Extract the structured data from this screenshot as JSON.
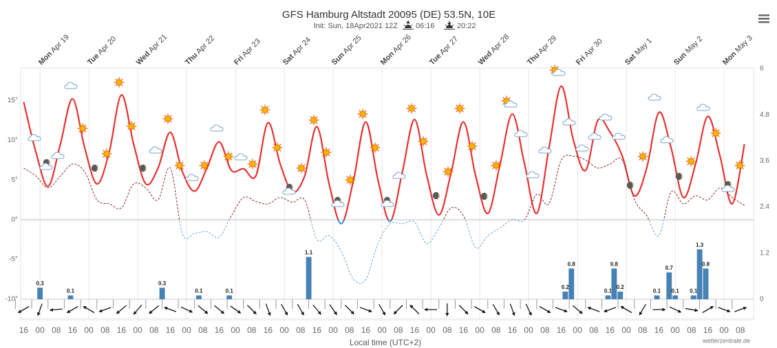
{
  "chart_data": {
    "type": "line",
    "title": "GFS Hamburg Altstadt 20095 (DE) 53.5N, 10E",
    "subtitle": "Init: Sun, 18Apr2021 12Z",
    "sunrise": "06:16",
    "sunset": "20:22",
    "x_label": "Local time (UTC+2)",
    "credit": "wetterzentrale.de",
    "xlim": [
      14.5,
      374.5
    ],
    "xticks": [
      {
        "value": 16,
        "label": "16"
      },
      {
        "value": 24,
        "label": "00"
      },
      {
        "value": 32,
        "label": "08"
      },
      {
        "value": 40,
        "label": "16"
      },
      {
        "value": 48,
        "label": "00"
      },
      {
        "value": 56,
        "label": "08"
      },
      {
        "value": 64,
        "label": "16"
      },
      {
        "value": 72,
        "label": "00"
      },
      {
        "value": 80,
        "label": "08"
      },
      {
        "value": 88,
        "label": "16"
      },
      {
        "value": 96,
        "label": "00"
      },
      {
        "value": 104,
        "label": "08"
      },
      {
        "value": 112,
        "label": "16"
      },
      {
        "value": 120,
        "label": "00"
      },
      {
        "value": 128,
        "label": "08"
      },
      {
        "value": 136,
        "label": "16"
      },
      {
        "value": 144,
        "label": "00"
      },
      {
        "value": 152,
        "label": "08"
      },
      {
        "value": 160,
        "label": "16"
      },
      {
        "value": 168,
        "label": "00"
      },
      {
        "value": 176,
        "label": "08"
      },
      {
        "value": 184,
        "label": "16"
      },
      {
        "value": 192,
        "label": "00"
      },
      {
        "value": 200,
        "label": "08"
      },
      {
        "value": 208,
        "label": "16"
      },
      {
        "value": 216,
        "label": "00"
      },
      {
        "value": 224,
        "label": "08"
      },
      {
        "value": 232,
        "label": "16"
      },
      {
        "value": 240,
        "label": "00"
      },
      {
        "value": 248,
        "label": "08"
      },
      {
        "value": 256,
        "label": "16"
      },
      {
        "value": 264,
        "label": "00"
      },
      {
        "value": 272,
        "label": "08"
      },
      {
        "value": 280,
        "label": "16"
      },
      {
        "value": 288,
        "label": "00"
      },
      {
        "value": 296,
        "label": "08"
      },
      {
        "value": 304,
        "label": "16"
      },
      {
        "value": 312,
        "label": "00"
      },
      {
        "value": 320,
        "label": "08"
      },
      {
        "value": 328,
        "label": "16"
      },
      {
        "value": 336,
        "label": "00"
      },
      {
        "value": 344,
        "label": "08"
      },
      {
        "value": 352,
        "label": "16"
      },
      {
        "value": 360,
        "label": "00"
      },
      {
        "value": 368,
        "label": "08"
      }
    ],
    "day_labels": [
      {
        "value": 24,
        "label": "Mon Apr 19"
      },
      {
        "value": 48,
        "label": "Tue Apr 20"
      },
      {
        "value": 72,
        "label": "Wed Apr 21"
      },
      {
        "value": 96,
        "label": "Thu Apr 22"
      },
      {
        "value": 120,
        "label": "Fri Apr 23"
      },
      {
        "value": 144,
        "label": "Sat Apr 24"
      },
      {
        "value": 168,
        "label": "Sun Apr 25"
      },
      {
        "value": 192,
        "label": "Mon Apr 26"
      },
      {
        "value": 216,
        "label": "Tue Apr 27"
      },
      {
        "value": 240,
        "label": "Wed Apr 28"
      },
      {
        "value": 264,
        "label": "Thu Apr 29"
      },
      {
        "value": 288,
        "label": "Fri Apr 30"
      },
      {
        "value": 312,
        "label": "Sat May 1"
      },
      {
        "value": 336,
        "label": "Sun May 2"
      },
      {
        "value": 360,
        "label": "Mon May 3"
      }
    ],
    "ylim": [
      -10,
      19
    ],
    "yticks": [
      {
        "value": -10,
        "label": "-10°"
      },
      {
        "value": -5,
        "label": "-5°"
      },
      {
        "value": 0,
        "label": "0°"
      },
      {
        "value": 5,
        "label": "5°"
      },
      {
        "value": 10,
        "label": "10°"
      },
      {
        "value": 15,
        "label": "15°"
      }
    ],
    "y2lim": [
      0,
      6
    ],
    "y2ticks": [
      0,
      1.2,
      2.4,
      3.6,
      4.8,
      6
    ],
    "zero_line": true,
    "x": [
      16,
      22,
      28,
      34,
      40,
      46,
      52,
      58,
      64,
      70,
      76,
      82,
      88,
      94,
      100,
      106,
      112,
      118,
      124,
      130,
      136,
      142,
      148,
      154,
      160,
      166,
      172,
      178,
      184,
      190,
      196,
      202,
      208,
      214,
      220,
      226,
      232,
      238,
      244,
      250,
      256,
      262,
      268,
      274,
      280,
      286,
      292,
      298,
      304,
      310,
      316,
      322,
      328,
      334,
      340,
      346,
      352,
      358,
      364,
      370
    ],
    "series": [
      {
        "color": "#e83030",
        "negative_color": "#3a8fd8",
        "dashed": false,
        "values": [
          14.8,
          8.5,
          4.2,
          9.5,
          15.2,
          9.0,
          4.5,
          8.5,
          15.7,
          9.5,
          4.5,
          6.5,
          11.0,
          6.0,
          3.6,
          6.5,
          9.8,
          6.2,
          6.4,
          5.5,
          12.2,
          7.0,
          3.5,
          5.5,
          11.7,
          4.5,
          -0.5,
          5.0,
          12.3,
          5.0,
          -0.2,
          6.0,
          12.6,
          5.5,
          0.6,
          6.0,
          12.3,
          5.5,
          0.8,
          7.0,
          13.3,
          7.0,
          0.8,
          9.0,
          16.8,
          10.0,
          6.2,
          12.5,
          11.0,
          8.0,
          3.0,
          6.5,
          13.5,
          9.0,
          2.8,
          7.0,
          13.0,
          8.0,
          2.0,
          9.5
        ]
      },
      {
        "color": "#8b2323",
        "negative_color": "#6aa7dd",
        "dashed": true,
        "values": [
          6.5,
          5.5,
          4.0,
          5.5,
          7.0,
          6.0,
          2.5,
          2.0,
          1.5,
          4.5,
          4.0,
          2.5,
          6.5,
          -1.8,
          -1.7,
          -1.5,
          -2.2,
          0.5,
          2.8,
          2.3,
          2.0,
          2.8,
          2.2,
          2.5,
          -2.5,
          -2.0,
          -4.0,
          -7.5,
          -7.5,
          -3.0,
          -0.5,
          -0.5,
          -0.3,
          -3.0,
          -1.0,
          1.5,
          0.5,
          -3.5,
          -2.0,
          -1.0,
          0.0,
          0.0,
          3.2,
          2.0,
          7.5,
          8.0,
          7.5,
          6.5,
          7.0,
          7.5,
          2.5,
          0.5,
          -2.0,
          3.5,
          2.0,
          3.0,
          2.5,
          4.0,
          2.8,
          1.8
        ]
      },
      {
        "type": "bar",
        "axis": "y2",
        "color": "#4682b4",
        "x": [
          24,
          39,
          84,
          102,
          117,
          156,
          282,
          285,
          303,
          306,
          309,
          327,
          333,
          336,
          345,
          348,
          351
        ],
        "values": [
          0.3,
          0.1,
          0.3,
          0.1,
          0.1,
          1.1,
          0.2,
          0.8,
          0.1,
          0.8,
          0.2,
          0.1,
          0.7,
          0.1,
          0.1,
          1.3,
          0.8
        ]
      }
    ],
    "wind_direction": [
      240,
      200,
      265,
      240,
      300,
      250,
      230,
      220,
      230,
      290,
      115,
      130,
      130,
      125,
      135,
      160,
      150,
      150,
      140,
      145,
      135,
      110,
      150,
      225,
      315,
      270,
      180,
      135,
      120,
      150,
      160,
      155,
      120,
      110,
      130,
      290,
      250,
      300,
      210,
      90,
      115,
      100,
      60,
      110,
      70
    ]
  }
}
